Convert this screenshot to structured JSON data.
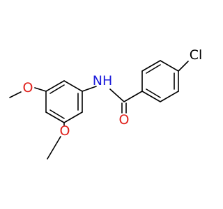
{
  "atoms": {
    "chlorine": "Cl",
    "amide_nitrogen": "NH",
    "carbonyl_oxygen": "O",
    "methoxy_oxygen_top": "O",
    "methoxy_oxygen_bottom": "O"
  }
}
